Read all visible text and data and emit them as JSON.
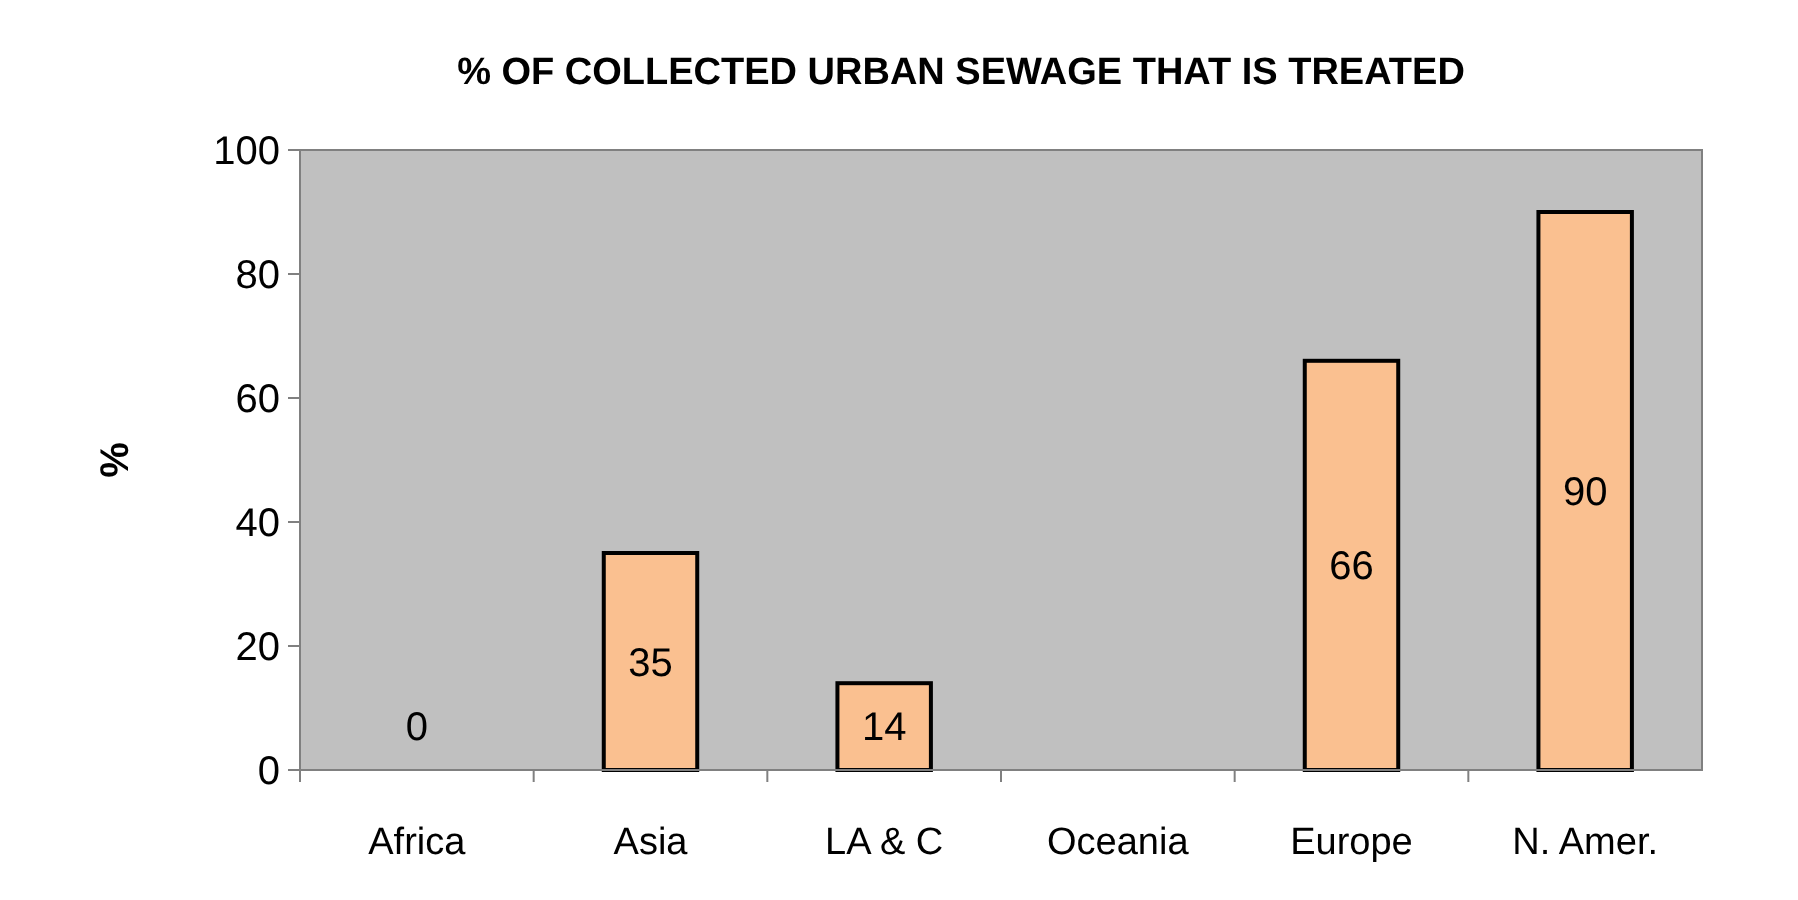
{
  "chart_data": {
    "type": "bar",
    "title": "% OF COLLECTED URBAN SEWAGE THAT IS TREATED",
    "ylabel": "%",
    "categories": [
      "Africa",
      "Asia",
      "LA & C",
      "Oceania",
      "Europe",
      "N. Amer."
    ],
    "values": [
      0,
      35,
      14,
      null,
      66,
      90
    ],
    "color": "#fac090",
    "ylim": [
      0,
      100
    ],
    "yticks": [
      0,
      20,
      40,
      60,
      80,
      100
    ],
    "grid": false,
    "data_labels": true
  }
}
